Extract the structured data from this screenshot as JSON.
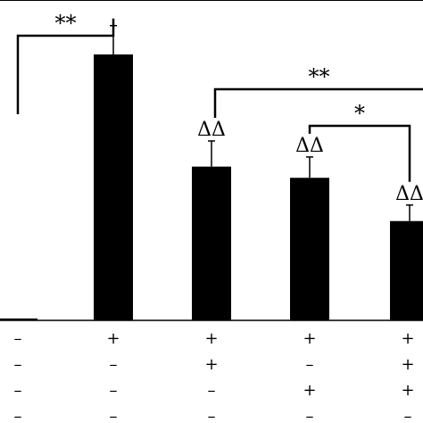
{
  "chart_data": {
    "type": "bar",
    "title": "",
    "xlabel": "",
    "ylabel": "",
    "ylim": [
      0,
      100
    ],
    "grid": false,
    "legend": "none",
    "bar_color": "#000000",
    "series": [
      {
        "values": [
          0.6,
          83,
          48,
          44.5,
          31
        ],
        "errors": [
          0.3,
          9,
          8,
          6.5,
          5
        ]
      }
    ],
    "condition_rows": [
      [
        "–",
        "+",
        "+",
        "+",
        "+"
      ],
      [
        "–",
        "–",
        "+",
        "–",
        "+"
      ],
      [
        "–",
        "–",
        "–",
        "+",
        "+"
      ],
      [
        "–",
        "–",
        "–",
        "–",
        "–"
      ]
    ],
    "bar_annotations": [
      "",
      "",
      "ΔΔ",
      "ΔΔ",
      "ΔΔ"
    ],
    "significance": [
      {
        "from": 0,
        "to": 1,
        "label": "**"
      },
      {
        "from": 2,
        "to": 4,
        "label": "**"
      },
      {
        "from": 3,
        "to": 4,
        "label": "*"
      }
    ]
  }
}
